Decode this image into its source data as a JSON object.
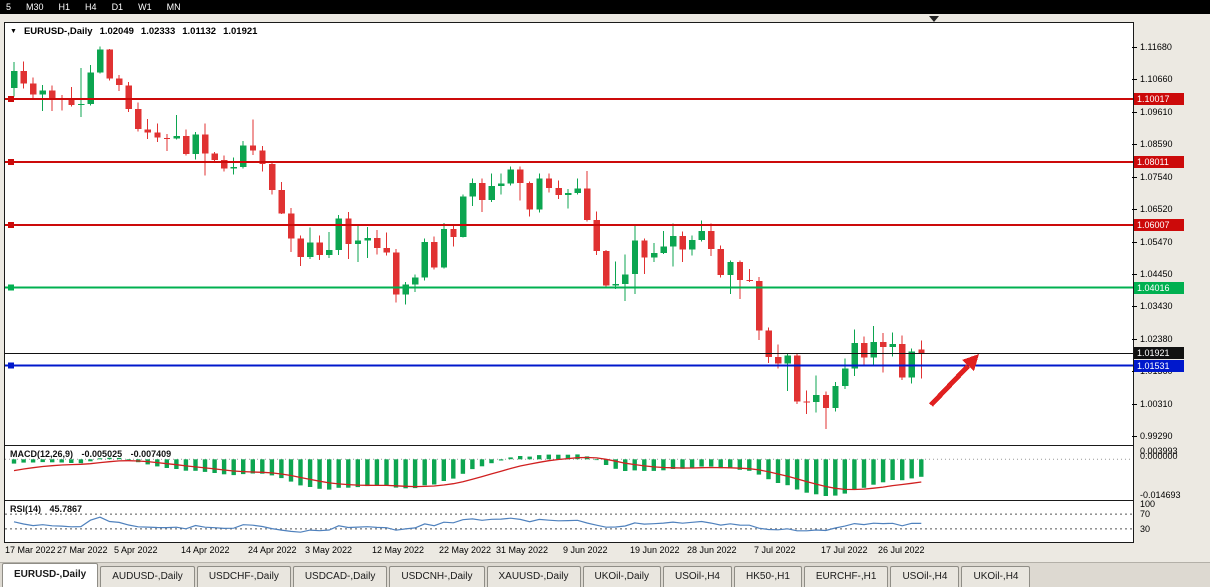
{
  "toolbar": {
    "timeframes": [
      "5",
      "M30",
      "H1",
      "H4",
      "D1",
      "W1",
      "MN"
    ]
  },
  "chart": {
    "title": {
      "symbol": "EURUSD-,Daily",
      "open": "1.02049",
      "high": "1.02333",
      "low": "1.01132",
      "close": "1.01921"
    },
    "price_axis_labels": [
      "1.11680",
      "1.10660",
      "1.09610",
      "1.08590",
      "1.07540",
      "1.06520",
      "1.05470",
      "1.04450",
      "1.03430",
      "1.02380",
      "1.01360",
      "1.00310",
      "0.99290"
    ],
    "hlines": [
      {
        "price": 1.10017,
        "label": "1.10017",
        "color": "#cc0a0a",
        "width": 2,
        "handle": true
      },
      {
        "price": 1.08011,
        "label": "1.08011",
        "color": "#cc0a0a",
        "width": 2,
        "handle": true
      },
      {
        "price": 1.06007,
        "label": "1.06007",
        "color": "#cc0a0a",
        "width": 2,
        "handle": true
      },
      {
        "price": 1.04016,
        "label": "1.04016",
        "color": "#00b050",
        "width": 2,
        "handle": true
      },
      {
        "price": 1.01921,
        "label": "1.01921",
        "color": "#111111",
        "width": 1,
        "handle": false
      },
      {
        "price": 1.01531,
        "label": "1.01531",
        "color": "#0018cc",
        "width": 2,
        "handle": true
      }
    ],
    "annotation_arrow_color": "#e02020"
  },
  "chart_data": {
    "type": "candlestick",
    "symbol": "EURUSD",
    "period": "Daily",
    "y_range": [
      0.9901,
      1.1243
    ],
    "x_labels": [
      {
        "label": "17 Mar 2022",
        "i": 0
      },
      {
        "label": "27 Mar 2022",
        "i": 7
      },
      {
        "label": "5 Apr 2022",
        "i": 13
      },
      {
        "label": "14 Apr 2022",
        "i": 20
      },
      {
        "label": "24 Apr 2022",
        "i": 27
      },
      {
        "label": "3 May 2022",
        "i": 33
      },
      {
        "label": "12 May 2022",
        "i": 40
      },
      {
        "label": "22 May 2022",
        "i": 47
      },
      {
        "label": "31 May 2022",
        "i": 53
      },
      {
        "label": "9 Jun 2022",
        "i": 60
      },
      {
        "label": "19 Jun 2022",
        "i": 67
      },
      {
        "label": "28 Jun 2022",
        "i": 73
      },
      {
        "label": "7 Jul 2022",
        "i": 80
      },
      {
        "label": "17 Jul 2022",
        "i": 87
      },
      {
        "label": "26 Jul 2022",
        "i": 93
      }
    ],
    "candles": [
      [
        1.1036,
        1.1119,
        1.1009,
        1.109
      ],
      [
        1.109,
        1.112,
        1.1035,
        1.105
      ],
      [
        1.105,
        1.1069,
        1.1003,
        1.1015
      ],
      [
        1.1015,
        1.1046,
        1.0963,
        1.1028
      ],
      [
        1.1028,
        1.1044,
        1.0963,
        1.1005
      ],
      [
        1.1005,
        1.1014,
        1.0965,
        1.0998
      ],
      [
        1.0998,
        1.1039,
        1.0977,
        1.0982
      ],
      [
        1.0982,
        1.11,
        1.0944,
        1.0985
      ],
      [
        1.0985,
        1.111,
        1.098,
        1.1086
      ],
      [
        1.1086,
        1.1168,
        1.1083,
        1.1158
      ],
      [
        1.1158,
        1.116,
        1.106,
        1.1067
      ],
      [
        1.1067,
        1.1077,
        1.1027,
        1.1045
      ],
      [
        1.1045,
        1.1055,
        1.096,
        1.097
      ],
      [
        1.097,
        1.099,
        1.0898,
        1.0905
      ],
      [
        1.0905,
        1.0938,
        1.0874,
        1.0895
      ],
      [
        1.0895,
        1.0923,
        1.0864,
        1.0878
      ],
      [
        1.0878,
        1.089,
        1.0836,
        1.0876
      ],
      [
        1.0876,
        1.095,
        1.0872,
        1.0883
      ],
      [
        1.0883,
        1.0904,
        1.0821,
        1.0827
      ],
      [
        1.0827,
        1.0897,
        1.0809,
        1.0889
      ],
      [
        1.0889,
        1.0924,
        1.0758,
        1.0828
      ],
      [
        1.0828,
        1.0833,
        1.0797,
        1.0807
      ],
      [
        1.0807,
        1.0822,
        1.077,
        1.0781
      ],
      [
        1.0781,
        1.0815,
        1.0761,
        1.0785
      ],
      [
        1.0785,
        1.0867,
        1.0781,
        1.0853
      ],
      [
        1.0853,
        1.0936,
        1.0824,
        1.0837
      ],
      [
        1.0837,
        1.0852,
        1.077,
        1.0795
      ],
      [
        1.0795,
        1.08,
        1.0697,
        1.0712
      ],
      [
        1.0712,
        1.0738,
        1.0635,
        1.0637
      ],
      [
        1.0637,
        1.0655,
        1.0514,
        1.0558
      ],
      [
        1.0558,
        1.0567,
        1.0471,
        1.0499
      ],
      [
        1.0499,
        1.0593,
        1.0492,
        1.0545
      ],
      [
        1.0545,
        1.0568,
        1.049,
        1.0505
      ],
      [
        1.0505,
        1.0578,
        1.0495,
        1.0521
      ],
      [
        1.0521,
        1.0632,
        1.0506,
        1.0622
      ],
      [
        1.0622,
        1.0642,
        1.0492,
        1.054
      ],
      [
        1.054,
        1.0599,
        1.0483,
        1.0551
      ],
      [
        1.0551,
        1.0595,
        1.0495,
        1.056
      ],
      [
        1.056,
        1.0585,
        1.0507,
        1.0528
      ],
      [
        1.0528,
        1.0576,
        1.0503,
        1.0513
      ],
      [
        1.0513,
        1.0525,
        1.0354,
        1.0379
      ],
      [
        1.0379,
        1.042,
        1.0348,
        1.0411
      ],
      [
        1.0411,
        1.0443,
        1.0388,
        1.0434
      ],
      [
        1.0434,
        1.0557,
        1.0424,
        1.0546
      ],
      [
        1.0546,
        1.0564,
        1.0459,
        1.0465
      ],
      [
        1.0465,
        1.0607,
        1.0462,
        1.0588
      ],
      [
        1.0588,
        1.0604,
        1.0532,
        1.0563
      ],
      [
        1.0563,
        1.0697,
        1.0561,
        1.0691
      ],
      [
        1.0691,
        1.0748,
        1.0661,
        1.0734
      ],
      [
        1.0734,
        1.0749,
        1.0642,
        1.068
      ],
      [
        1.068,
        1.0765,
        1.0674,
        1.0724
      ],
      [
        1.0724,
        1.0765,
        1.0697,
        1.0733
      ],
      [
        1.0733,
        1.0786,
        1.0726,
        1.0777
      ],
      [
        1.0777,
        1.0787,
        1.0678,
        1.0734
      ],
      [
        1.0734,
        1.0739,
        1.0627,
        1.065
      ],
      [
        1.065,
        1.0764,
        1.0641,
        1.0748
      ],
      [
        1.0748,
        1.0764,
        1.0704,
        1.0719
      ],
      [
        1.0719,
        1.0742,
        1.0684,
        1.0696
      ],
      [
        1.0696,
        1.0715,
        1.0653,
        1.0703
      ],
      [
        1.0703,
        1.0748,
        1.0698,
        1.0716
      ],
      [
        1.0716,
        1.0773,
        1.0611,
        1.0617
      ],
      [
        1.0617,
        1.0643,
        1.0505,
        1.0518
      ],
      [
        1.0518,
        1.0521,
        1.0399,
        1.0408
      ],
      [
        1.0408,
        1.0485,
        1.0397,
        1.0413
      ],
      [
        1.0413,
        1.0507,
        1.0359,
        1.0444
      ],
      [
        1.0444,
        1.0601,
        1.0381,
        1.0551
      ],
      [
        1.0551,
        1.0557,
        1.0445,
        1.0497
      ],
      [
        1.0497,
        1.0544,
        1.0483,
        1.0511
      ],
      [
        1.0511,
        1.0582,
        1.0508,
        1.0533
      ],
      [
        1.0533,
        1.0606,
        1.0469,
        1.0566
      ],
      [
        1.0566,
        1.058,
        1.0483,
        1.0523
      ],
      [
        1.0523,
        1.0568,
        1.0504,
        1.0553
      ],
      [
        1.0553,
        1.0615,
        1.0548,
        1.0581
      ],
      [
        1.0581,
        1.0606,
        1.0502,
        1.0524
      ],
      [
        1.0524,
        1.0536,
        1.0434,
        1.0442
      ],
      [
        1.0442,
        1.0488,
        1.0381,
        1.0483
      ],
      [
        1.0483,
        1.0487,
        1.0365,
        1.0426
      ],
      [
        1.0426,
        1.0461,
        1.042,
        1.0423
      ],
      [
        1.0423,
        1.0436,
        1.0235,
        1.0265
      ],
      [
        1.0265,
        1.0275,
        1.0162,
        1.0181
      ],
      [
        1.0181,
        1.0221,
        1.0144,
        1.016
      ],
      [
        1.016,
        1.019,
        1.0072,
        1.0186
      ],
      [
        1.0186,
        1.0193,
        1.0032,
        1.004
      ],
      [
        1.004,
        1.0074,
        0.9999,
        1.0037
      ],
      [
        1.0037,
        1.0122,
        1.0005,
        1.006
      ],
      [
        1.006,
        1.0071,
        0.9952,
        1.0019
      ],
      [
        1.0019,
        1.0101,
        1.0007,
        1.0088
      ],
      [
        1.0088,
        1.0176,
        1.0079,
        1.0144
      ],
      [
        1.0144,
        1.0269,
        1.0121,
        1.0226
      ],
      [
        1.0226,
        1.0246,
        1.0155,
        1.018
      ],
      [
        1.018,
        1.0279,
        1.0152,
        1.0229
      ],
      [
        1.0229,
        1.0257,
        1.0131,
        1.0213
      ],
      [
        1.0213,
        1.0258,
        1.0183,
        1.0222
      ],
      [
        1.0222,
        1.025,
        1.0108,
        1.0115
      ],
      [
        1.0115,
        1.0208,
        1.0097,
        1.0199
      ],
      [
        1.02049,
        1.02333,
        1.01132,
        1.01921
      ]
    ]
  },
  "indicators": {
    "macd": {
      "name": "MACD(12,26,9)",
      "value_main": "-0.005025",
      "value_signal": "-0.007409",
      "axis_max": "0.003993",
      "axis_zero": "0.000000",
      "axis_min": "-0.014693",
      "range": [
        -0.014693,
        0.003993
      ],
      "histogram_color": "#0CA550",
      "signal_color": "#d02020"
    },
    "rsi": {
      "name": "RSI(14)",
      "value": "45.7867",
      "axis": [
        "100",
        "70",
        "30"
      ],
      "levels": [
        70,
        30
      ],
      "line_color": "#4f81bd"
    }
  },
  "tabs": [
    {
      "label": "EURUSD-,Daily",
      "active": true
    },
    {
      "label": "AUDUSD-,Daily",
      "active": false
    },
    {
      "label": "USDCHF-,Daily",
      "active": false
    },
    {
      "label": "USDCAD-,Daily",
      "active": false
    },
    {
      "label": "USDCNH-,Daily",
      "active": false
    },
    {
      "label": "XAUUSD-,Daily",
      "active": false
    },
    {
      "label": "UKOil-,Daily",
      "active": false
    },
    {
      "label": "USOil-,H4",
      "active": false
    },
    {
      "label": "HK50-,H1",
      "active": false
    },
    {
      "label": "EURCHF-,H1",
      "active": false
    },
    {
      "label": "USOil-,H4",
      "active": false
    },
    {
      "label": "UKOil-,H4",
      "active": false
    }
  ],
  "colors": {
    "up": "#0CA550",
    "down": "#E03232",
    "chart_bg": "#ffffff",
    "window_bg": "#ece9e2"
  }
}
